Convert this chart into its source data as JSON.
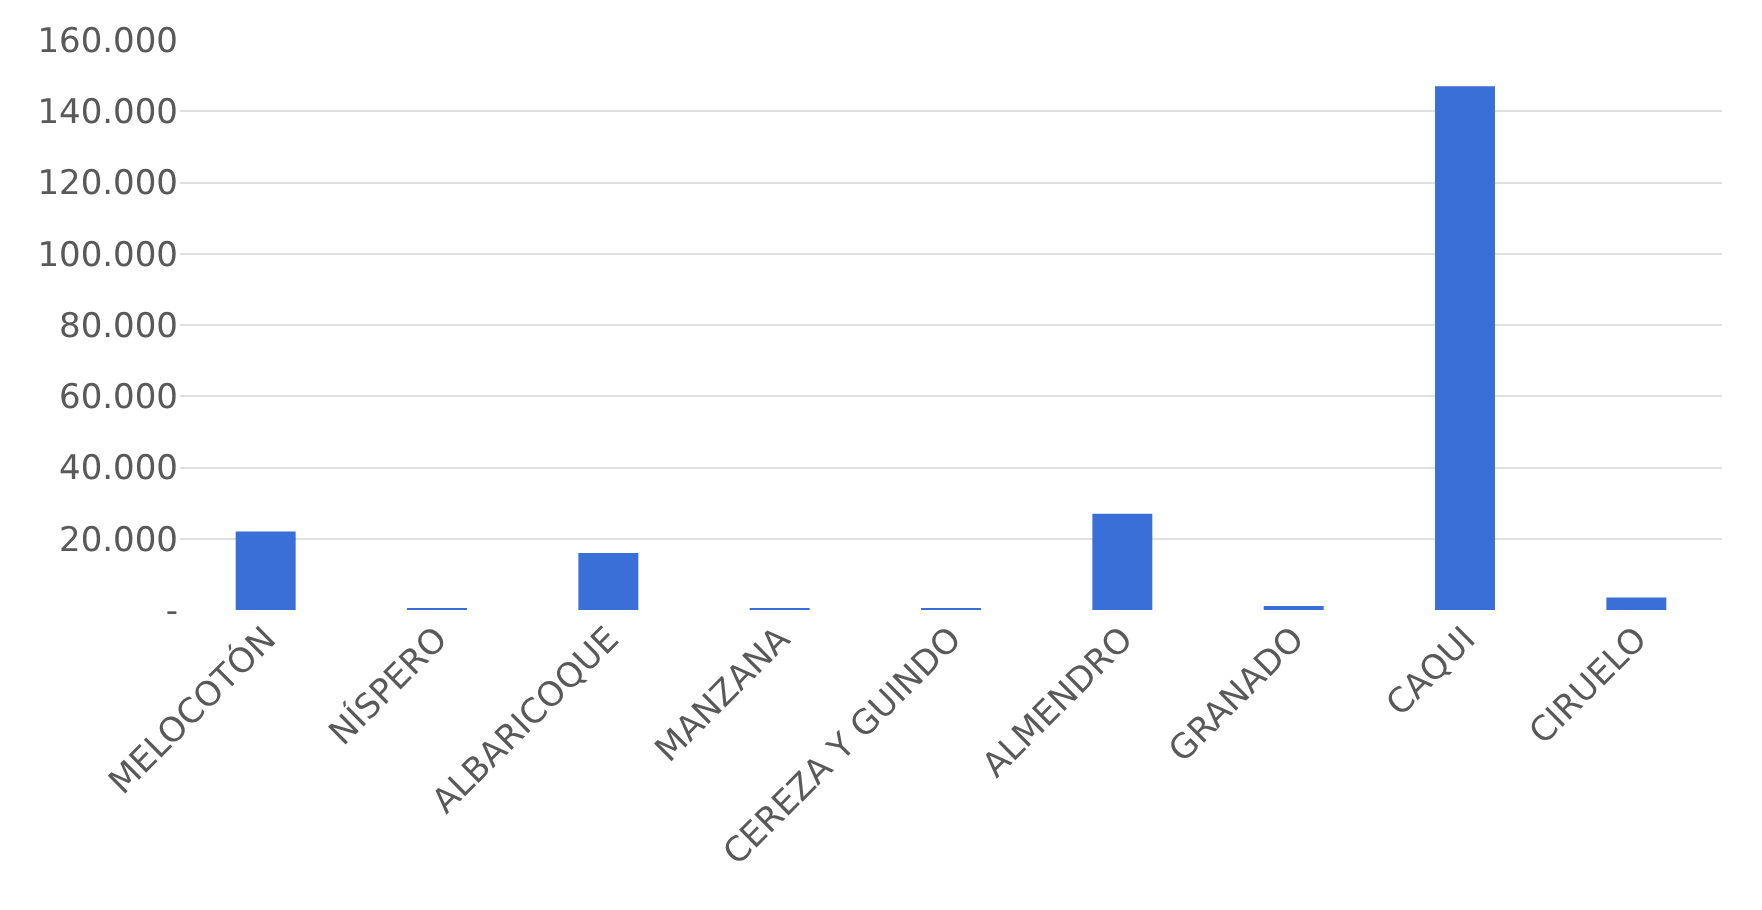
{
  "chart_data": {
    "type": "bar",
    "categories": [
      "MELOCOTÓN",
      "NÍSPERO",
      "ALBARICOQUE",
      "MANZANA",
      "CEREZA Y GUINDO",
      "ALMENDRO",
      "GRANADO",
      "CAQUI",
      "CIRUELO"
    ],
    "values": [
      22000,
      500,
      16000,
      300,
      300,
      27000,
      1000,
      147000,
      3500
    ],
    "color": "#3a6fd8",
    "ylim": [
      0,
      160000
    ],
    "yticks": [
      {
        "value": 0,
        "label": "-"
      },
      {
        "value": 20000,
        "label": "20.000"
      },
      {
        "value": 40000,
        "label": "40.000"
      },
      {
        "value": 60000,
        "label": "60.000"
      },
      {
        "value": 80000,
        "label": "80.000"
      },
      {
        "value": 100000,
        "label": "100.000"
      },
      {
        "value": 120000,
        "label": "120.000"
      },
      {
        "value": 140000,
        "label": "140.000"
      },
      {
        "value": 160000,
        "label": "160.000"
      }
    ],
    "grid": "y"
  }
}
